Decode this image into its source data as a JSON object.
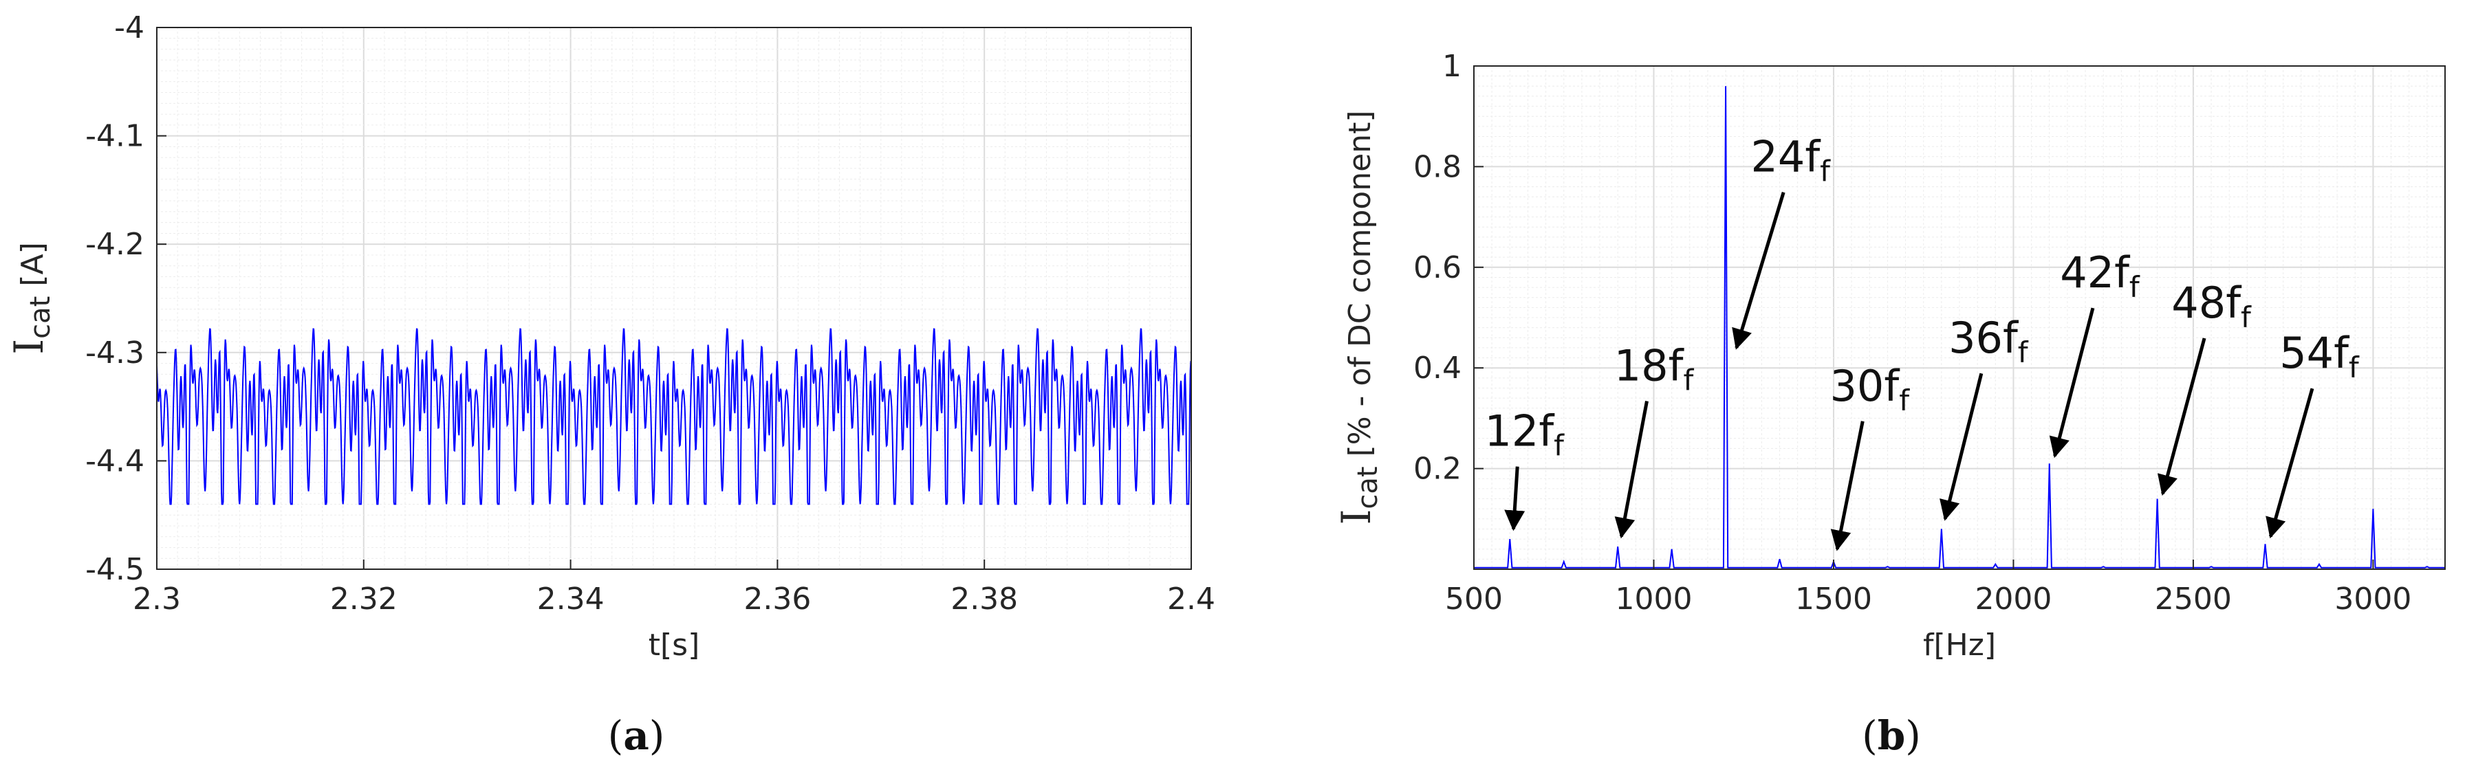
{
  "chart_data": [
    {
      "type": "line",
      "panel_label": "a",
      "xlabel": "t[s]",
      "ylabel_main": "I",
      "ylabel_sub": "cat",
      "ylabel_unit": " [A]",
      "xlim": [
        2.3,
        2.4
      ],
      "ylim": [
        -4.5,
        -4.0
      ],
      "xticks": [
        "2.3",
        "2.32",
        "2.34",
        "2.36",
        "2.38",
        "2.4"
      ],
      "xtick_values": [
        2.3,
        2.32,
        2.34,
        2.36,
        2.38,
        2.4
      ],
      "yticks": [
        "-4",
        "-4.1",
        "-4.2",
        "-4.3",
        "-4.4",
        "-4.5"
      ],
      "ytick_values": [
        -4.0,
        -4.1,
        -4.2,
        -4.3,
        -4.4,
        -4.5
      ],
      "grid": true,
      "series": [
        {
          "color": "#0000ff",
          "signal_model": {
            "mean": -4.355,
            "components": [
              {
                "freq_hz": 600,
                "amplitude": 0.03
              },
              {
                "freq_hz": 1200,
                "amplitude": 0.045
              },
              {
                "freq_hz": 1800,
                "amplitude": 0.018
              },
              {
                "freq_hz": 2100,
                "amplitude": 0.022
              },
              {
                "freq_hz": 2400,
                "amplitude": 0.016
              },
              {
                "freq_hz": 100,
                "amplitude": 0.012
              }
            ],
            "range": [
              -4.44,
              -4.25
            ]
          }
        }
      ]
    },
    {
      "type": "line",
      "panel_label": "b",
      "xlabel": "f[Hz]",
      "ylabel_main": "I",
      "ylabel_sub": "cat",
      "ylabel_unit": " [% - of DC component]",
      "xlim": [
        500,
        3200
      ],
      "ylim": [
        0,
        1
      ],
      "xticks": [
        "500",
        "1000",
        "1500",
        "2000",
        "2500",
        "3000"
      ],
      "xtick_values": [
        500,
        1000,
        1500,
        2000,
        2500,
        3000
      ],
      "yticks": [
        "1",
        "0.8",
        "0.6",
        "0.4",
        "0.2"
      ],
      "ytick_values": [
        1,
        0.8,
        0.6,
        0.4,
        0.2
      ],
      "grid": true,
      "series": [
        {
          "color": "#0000ff",
          "peaks": [
            {
              "f": 600,
              "value": 0.06
            },
            {
              "f": 750,
              "value": 0.015
            },
            {
              "f": 900,
              "value": 0.045
            },
            {
              "f": 1050,
              "value": 0.04
            },
            {
              "f": 1200,
              "value": 0.96
            },
            {
              "f": 1350,
              "value": 0.02
            },
            {
              "f": 1500,
              "value": 0.015
            },
            {
              "f": 1650,
              "value": 0.005
            },
            {
              "f": 1800,
              "value": 0.08
            },
            {
              "f": 1950,
              "value": 0.01
            },
            {
              "f": 2100,
              "value": 0.21
            },
            {
              "f": 2250,
              "value": 0.005
            },
            {
              "f": 2400,
              "value": 0.14
            },
            {
              "f": 2550,
              "value": 0.005
            },
            {
              "f": 2700,
              "value": 0.05
            },
            {
              "f": 2850,
              "value": 0.01
            },
            {
              "f": 3000,
              "value": 0.12
            },
            {
              "f": 3150,
              "value": 0.005
            }
          ]
        }
      ],
      "annotations": [
        {
          "main": "12f",
          "sub": "f",
          "point": [
            610,
            0.08
          ],
          "text_at": [
            640,
            0.245
          ]
        },
        {
          "main": "18f",
          "sub": "f",
          "point": [
            910,
            0.065
          ],
          "text_at": [
            1000,
            0.375
          ]
        },
        {
          "main": "24f",
          "sub": "f",
          "point": [
            1230,
            0.44
          ],
          "text_at": [
            1380,
            0.79
          ]
        },
        {
          "main": "30f",
          "sub": "f",
          "point": [
            1510,
            0.04
          ],
          "text_at": [
            1600,
            0.335
          ]
        },
        {
          "main": "36f",
          "sub": "f",
          "point": [
            1810,
            0.1
          ],
          "text_at": [
            1930,
            0.43
          ]
        },
        {
          "main": "42f",
          "sub": "f",
          "point": [
            2115,
            0.225
          ],
          "text_at": [
            2240,
            0.56
          ]
        },
        {
          "main": "48f",
          "sub": "f",
          "point": [
            2415,
            0.15
          ],
          "text_at": [
            2550,
            0.5
          ]
        },
        {
          "main": "54f",
          "sub": "f",
          "point": [
            2715,
            0.065
          ],
          "text_at": [
            2850,
            0.4
          ]
        }
      ]
    }
  ]
}
